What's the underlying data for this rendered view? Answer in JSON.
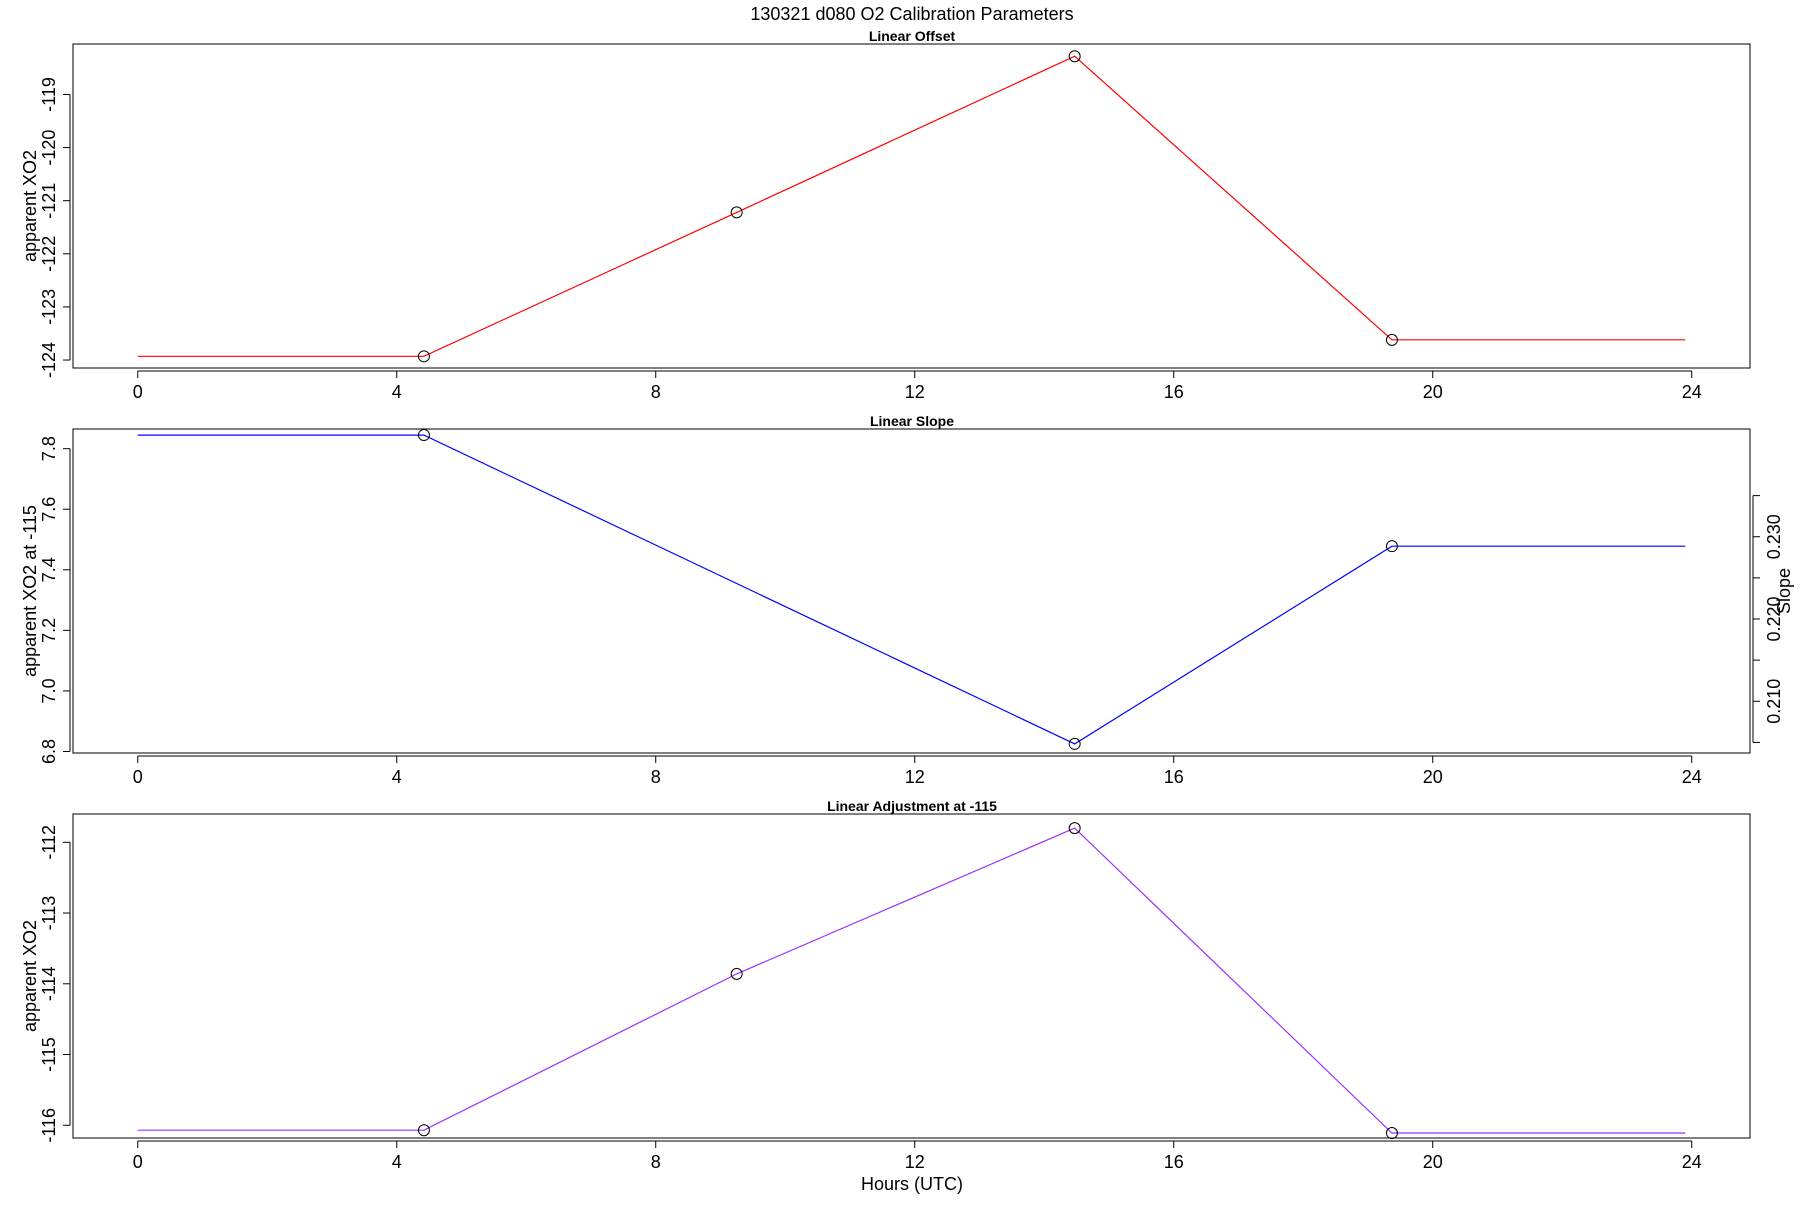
{
  "figure": {
    "title": "130321   d080   O2 Calibration Parameters",
    "xlabel": "Hours (UTC)"
  },
  "chart_data": [
    {
      "type": "line",
      "title": "Linear Offset",
      "xlabel": "",
      "ylabel": "apparent XO2",
      "xlim": [
        -1.0,
        24.9
      ],
      "ylim": [
        -124.15,
        -118.05
      ],
      "x_ticks": [
        0,
        4,
        8,
        12,
        16,
        20,
        24
      ],
      "y_ticks": [
        -124,
        -123,
        -122,
        -121,
        -120,
        -119
      ],
      "y_tick_labels": [
        "-124",
        "-123",
        "-122",
        "-121",
        "-120",
        "-119"
      ],
      "series": [
        {
          "color": "#ff0000",
          "x": [
            0,
            4.42,
            9.25,
            14.47,
            19.37,
            23.9
          ],
          "y": [
            -123.93,
            -123.93,
            -121.22,
            -118.28,
            -123.62,
            -123.62
          ],
          "markers": [
            false,
            true,
            true,
            true,
            true,
            false
          ]
        }
      ]
    },
    {
      "type": "line",
      "title": "Linear Slope",
      "xlabel": "",
      "ylabel": "apparent XO2 at -115",
      "y2label": "Slope",
      "xlim": [
        -1.0,
        24.9
      ],
      "ylim": [
        6.795,
        7.865
      ],
      "x_ticks": [
        0,
        4,
        8,
        12,
        16,
        20,
        24
      ],
      "y_ticks": [
        6.8,
        7.0,
        7.2,
        7.4,
        7.6,
        7.8
      ],
      "y_tick_labels": [
        "6.8",
        "7.0",
        "7.2",
        "7.4",
        "7.6",
        "7.8"
      ],
      "y2_ticks": [
        0.205,
        0.21,
        0.215,
        0.22,
        0.225,
        0.23,
        0.235
      ],
      "y2_tick_labels": [
        "",
        "0.210",
        "",
        "0.220",
        "",
        "0.230",
        ""
      ],
      "y2_scale": {
        "y_at_first_tick": 6.83,
        "y_at_last_tick": 7.645
      },
      "series": [
        {
          "color": "#0000ff",
          "x": [
            0,
            4.42,
            14.47,
            19.37,
            23.9
          ],
          "y": [
            7.845,
            7.845,
            6.825,
            7.478,
            7.478
          ],
          "markers": [
            false,
            true,
            true,
            true,
            false
          ]
        }
      ]
    },
    {
      "type": "line",
      "title": "Linear Adjustment at -115",
      "xlabel": "Hours (UTC)",
      "ylabel": "apparent XO2",
      "xlim": [
        -1.0,
        24.9
      ],
      "ylim": [
        -116.18,
        -111.6
      ],
      "x_ticks": [
        0,
        4,
        8,
        12,
        16,
        20,
        24
      ],
      "y_ticks": [
        -116,
        -115,
        -114,
        -113,
        -112
      ],
      "y_tick_labels": [
        "-116",
        "-115",
        "-114",
        "-113",
        "-112"
      ],
      "series": [
        {
          "color": "#9b30ff",
          "x": [
            0,
            4.42,
            9.25,
            14.47,
            19.37,
            23.9
          ],
          "y": [
            -116.07,
            -116.07,
            -113.86,
            -111.8,
            -116.11,
            -116.11
          ],
          "markers": [
            false,
            true,
            true,
            true,
            true,
            false
          ]
        }
      ]
    }
  ]
}
